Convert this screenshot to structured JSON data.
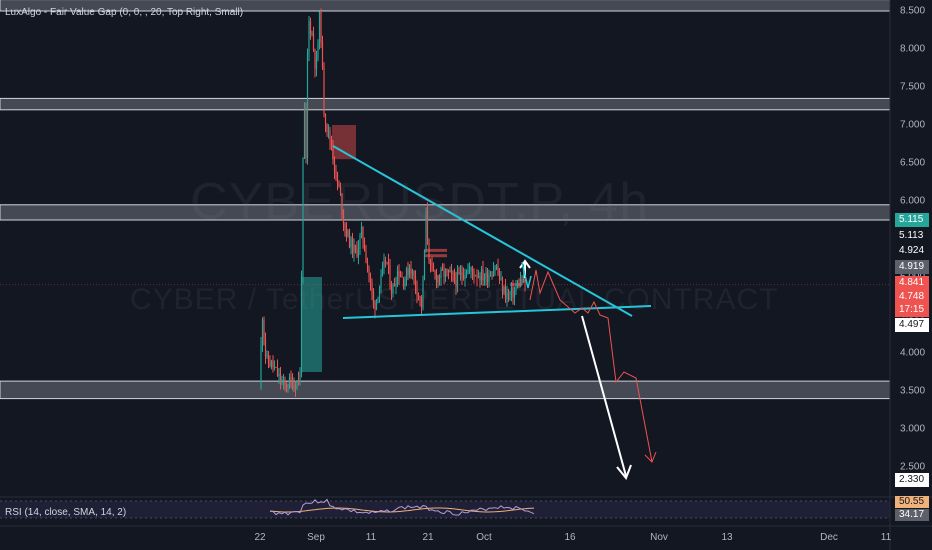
{
  "indicator": {
    "label": "LuxAlgo - Fair Value Gap (0, 0, , 20, Top Right, Small)"
  },
  "watermark": {
    "symbol": "CYBERUSDT.P, 4h",
    "description": "CYBER / TetherUS PERPETUAL CONTRACT"
  },
  "rsi": {
    "label": "RSI (14, close, SMA, 14, 2)"
  },
  "colors": {
    "background": "#131722",
    "up": "#26a69a",
    "down": "#ef5350",
    "trendline": "#26c6da",
    "zone": "#b2b5be"
  },
  "chart_data": {
    "type": "candlestick",
    "symbol": "CYBERUSDT.P",
    "timeframe": "4h",
    "ylim": [
      2.35,
      8.6
    ],
    "y_ticks": [
      "8.500",
      "8.000",
      "7.500",
      "7.000",
      "6.500",
      "6.000",
      "5.500",
      "5.000",
      "4.500",
      "4.000",
      "3.500",
      "3.000",
      "2.500"
    ],
    "x_ticks": [
      "22",
      "Sep",
      "11",
      "21",
      "Oct",
      "16",
      "Nov",
      "13",
      "Dec",
      "11"
    ],
    "price_tags": [
      {
        "text": "5.115",
        "bg": "#26a69a",
        "fg": "#ffffff"
      },
      {
        "text": "5.113",
        "bg": "#131722",
        "fg": "#ffffff"
      },
      {
        "text": "4.924",
        "bg": "#131722",
        "fg": "#ffffff"
      },
      {
        "text": "4.919",
        "bg": "#5d606b",
        "fg": "#ffffff"
      },
      {
        "text": "4.841",
        "bg": "#ef5350",
        "fg": "#ffffff"
      },
      {
        "text": "4.748",
        "bg": "#ef5350",
        "fg": "#ffffff"
      },
      {
        "text": "17:15",
        "bg": "#ef5350",
        "fg": "#ffffff"
      },
      {
        "text": "4.497",
        "bg": "#ffffff",
        "fg": "#131722"
      },
      {
        "text": "2.330",
        "bg": "#ffffff",
        "fg": "#131722"
      }
    ],
    "rsi_tags": [
      {
        "text": "50.55",
        "bg": "#f0b27a",
        "fg": "#131722"
      },
      {
        "text": "34.17",
        "bg": "#5d606b",
        "fg": "#ffffff"
      }
    ],
    "zones": [
      [
        8.5,
        8.65
      ],
      [
        7.2,
        7.35
      ],
      [
        5.75,
        5.95
      ],
      [
        3.4,
        3.63
      ]
    ],
    "trendlines": [
      {
        "from": [
          "Sep",
          6.7
        ],
        "to": [
          "Oct",
          4.6
        ]
      },
      {
        "from": [
          "Sep",
          4.45
        ],
        "to": [
          "Oct",
          4.6
        ]
      }
    ]
  }
}
